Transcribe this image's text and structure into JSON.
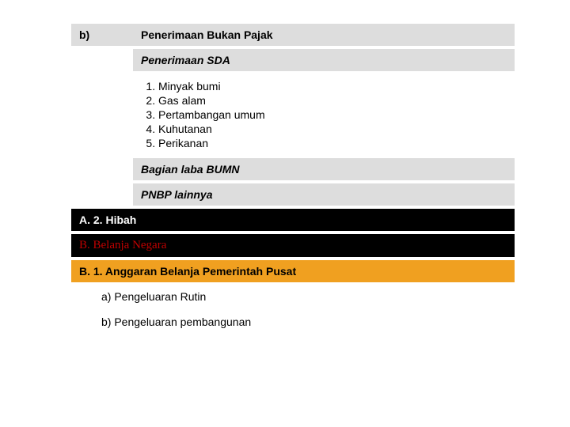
{
  "row_b": {
    "label": "b)",
    "title": "Penerimaan Bukan Pajak"
  },
  "sda_title": "Penerimaan SDA",
  "sda_items": {
    "i1": "Minyak bumi",
    "i2": "Gas alam",
    "i3": "Pertambangan umum",
    "i4": "Kuhutanan",
    "i5": "Perikanan"
  },
  "bumn": "Bagian laba BUMN",
  "pnbp": "PNBP lainnya",
  "hibah": "A. 2. Hibah",
  "belanja": "B. Belanja Negara",
  "anggaran": "B. 1. Anggaran Belanja Pemerintah Pusat",
  "pengeluaran_a": "a) Pengeluaran Rutin",
  "pengeluaran_b": "b) Pengeluaran pembangunan",
  "colors": {
    "gray": "#dddddd",
    "white": "#ffffff",
    "black": "#000000",
    "orange": "#f0a020",
    "red": "#c00000"
  }
}
